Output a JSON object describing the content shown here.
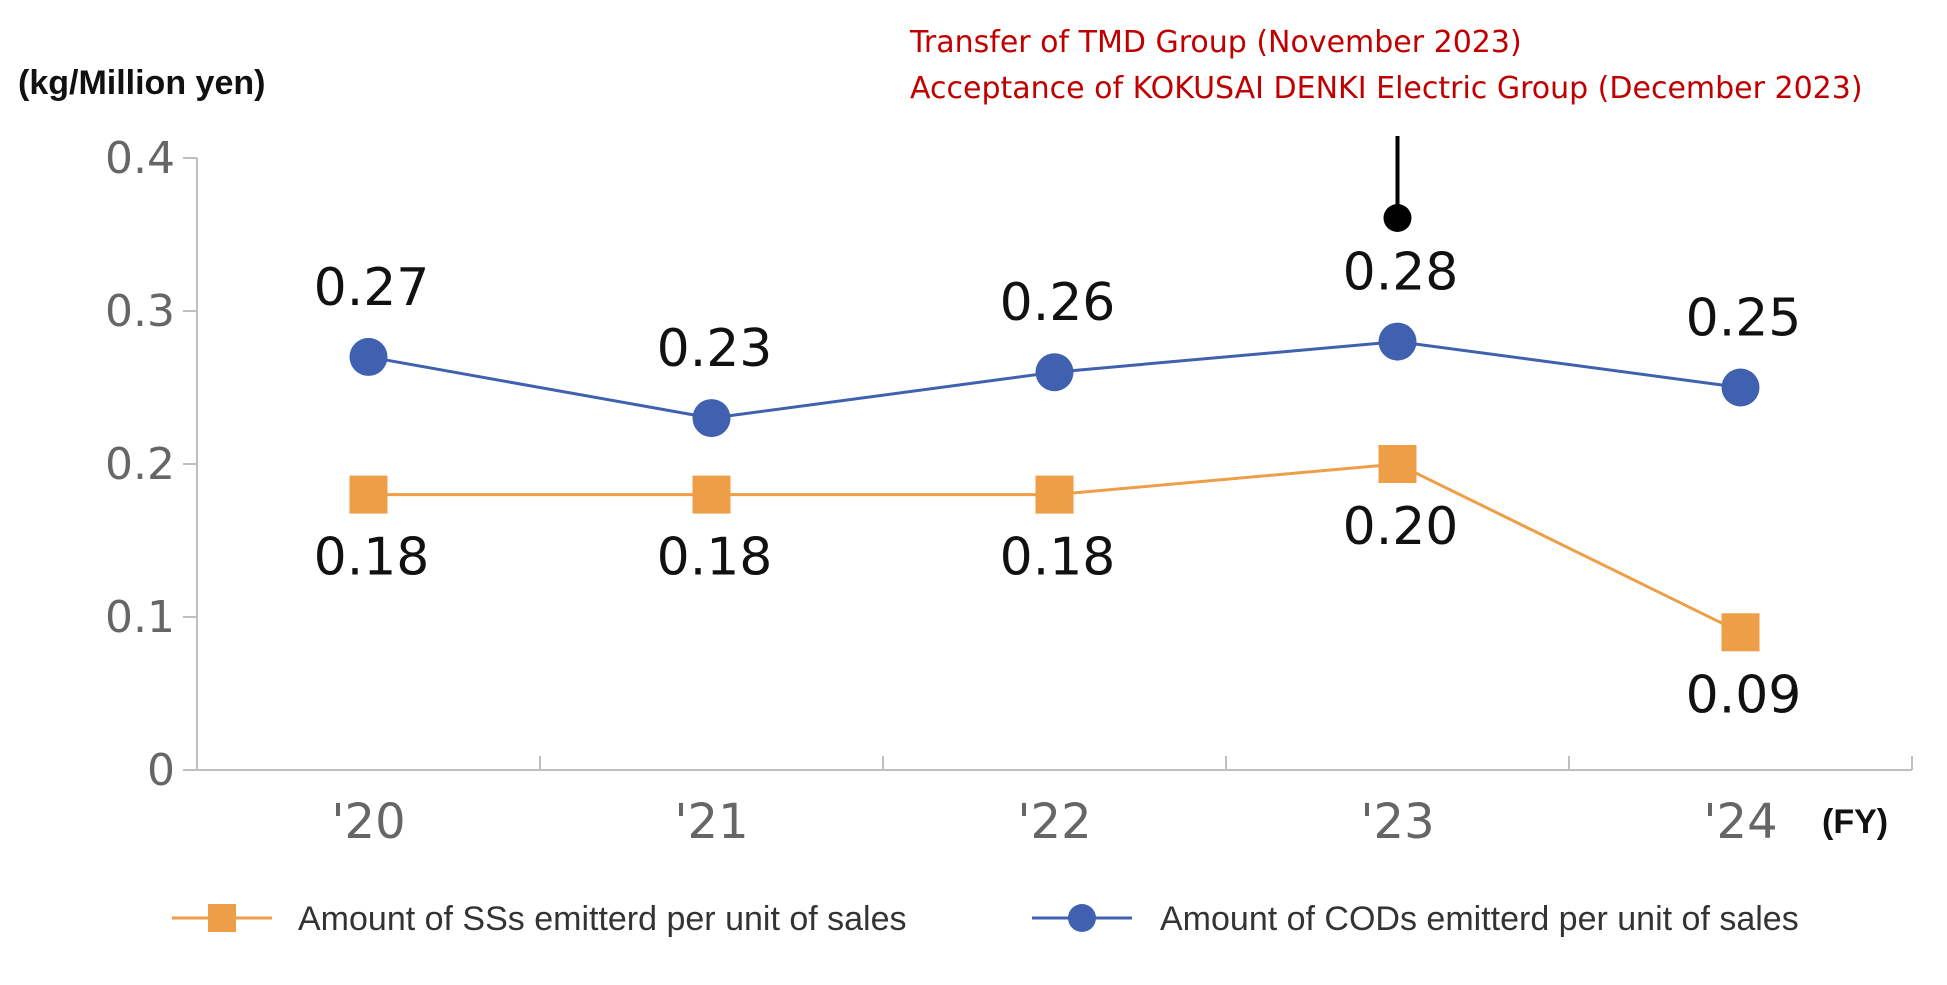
{
  "chart_data": {
    "type": "line",
    "ylabel": "(kg/Million yen)",
    "xlabel": "(FY)",
    "categories": [
      "'20",
      "'21",
      "'22",
      "'23",
      "'24"
    ],
    "ylim": [
      0,
      0.4
    ],
    "yticks": [
      "0",
      "0.1",
      "0.2",
      "0.3",
      "0.4"
    ],
    "ytick_values": [
      0,
      0.1,
      0.2,
      0.3,
      0.4
    ],
    "grid": false,
    "legend_position": "bottom",
    "series": [
      {
        "name": "Amount of SSs emitterd per unit of sales",
        "values": [
          0.18,
          0.18,
          0.18,
          0.2,
          0.09
        ],
        "labels": [
          "0.18",
          "0.18",
          "0.18",
          "0.20",
          "0.09"
        ],
        "marker": "square",
        "color": "#ED9E46",
        "label_position": "below"
      },
      {
        "name": "Amount of CODs emitterd per unit of sales",
        "values": [
          0.27,
          0.23,
          0.26,
          0.28,
          0.25
        ],
        "labels": [
          "0.27",
          "0.23",
          "0.26",
          "0.28",
          "0.25"
        ],
        "marker": "circle",
        "color": "#4060B0",
        "label_position": "above"
      }
    ],
    "annotation": {
      "category": "'23",
      "lines": [
        "Transfer of TMD Group (November 2023)",
        "Acceptance of KOKUSAI DENKI Electric Group (December 2023)"
      ],
      "color": "#C00000"
    }
  }
}
